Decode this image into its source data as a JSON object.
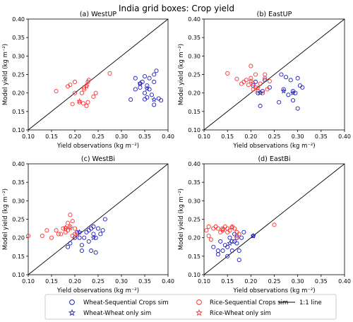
{
  "title": "India grid boxes: Crop yield",
  "legend": {
    "items": [
      {
        "label": "Wheat-Sequential Crops sim",
        "marker": "circle-open",
        "color": "#1f1fbf"
      },
      {
        "label": "Rice-Sequential Crops sim",
        "marker": "circle-open",
        "color": "#ff3333"
      },
      {
        "label": "1:1 line",
        "marker": "line",
        "color": "#000000"
      },
      {
        "label": "Wheat-Wheat only sim",
        "marker": "star-open",
        "color": "#1f1fbf"
      },
      {
        "label": "Rice-Wheat only sim",
        "marker": "star-open",
        "color": "#ff3333"
      }
    ]
  },
  "chart_data": [
    {
      "type": "scatter",
      "title": "(a)  WestUP",
      "xlabel": "Yield observations (kg m⁻²)",
      "ylabel": "Model yield (kg m⁻²)",
      "xlim": [
        0.1,
        0.4
      ],
      "ylim": [
        0.1,
        0.4
      ],
      "xticks": [
        "0.10",
        "0.15",
        "0.20",
        "0.25",
        "0.30",
        "0.35",
        "0.40"
      ],
      "yticks": [
        "0.10",
        "0.15",
        "0.20",
        "0.25",
        "0.30",
        "0.35",
        "0.40"
      ],
      "series": [
        {
          "name": "Wheat-Sequential Crops sim",
          "color": "#1f1fbf",
          "marker": "circle-open",
          "points": [
            [
              0.32,
              0.182
            ],
            [
              0.33,
              0.24
            ],
            [
              0.33,
              0.21
            ],
            [
              0.34,
              0.225
            ],
            [
              0.34,
              0.215
            ],
            [
              0.345,
              0.23
            ],
            [
              0.35,
              0.2
            ],
            [
              0.35,
              0.183
            ],
            [
              0.355,
              0.22
            ],
            [
              0.355,
              0.188
            ],
            [
              0.36,
              0.24
            ],
            [
              0.36,
              0.21
            ],
            [
              0.37,
              0.25
            ],
            [
              0.37,
              0.23
            ],
            [
              0.37,
              0.168
            ],
            [
              0.375,
              0.26
            ],
            [
              0.38,
              0.185
            ],
            [
              0.385,
              0.18
            ],
            [
              0.35,
              0.245
            ],
            [
              0.365,
              0.195
            ]
          ]
        },
        {
          "name": "Rice-Sequential Crops sim",
          "color": "#ff3333",
          "marker": "circle-open",
          "points": [
            [
              0.16,
              0.205
            ],
            [
              0.185,
              0.218
            ],
            [
              0.19,
              0.222
            ],
            [
              0.195,
              0.17
            ],
            [
              0.2,
              0.2
            ],
            [
              0.2,
              0.23
            ],
            [
              0.21,
              0.175
            ],
            [
              0.215,
              0.2
            ],
            [
              0.218,
              0.172
            ],
            [
              0.22,
              0.215
            ],
            [
              0.22,
              0.21
            ],
            [
              0.225,
              0.22
            ],
            [
              0.225,
              0.165
            ],
            [
              0.228,
              0.175
            ],
            [
              0.228,
              0.23
            ],
            [
              0.23,
              0.235
            ],
            [
              0.24,
              0.19
            ],
            [
              0.245,
              0.2
            ],
            [
              0.275,
              0.253
            ]
          ]
        },
        {
          "name": "Wheat-Wheat only sim",
          "color": "#1f1fbf",
          "marker": "star-open",
          "points": [
            [
              0.34,
              0.226
            ],
            [
              0.355,
              0.212
            ],
            [
              0.37,
              0.182
            ]
          ]
        },
        {
          "name": "Rice-Wheat only sim",
          "color": "#ff3333",
          "marker": "star-open",
          "points": [
            [
              0.21,
              0.178
            ],
            [
              0.225,
              0.218
            ]
          ]
        }
      ]
    },
    {
      "type": "scatter",
      "title": "(b)  EastUP",
      "xlabel": "Yield observations (kg m⁻²)",
      "ylabel": "Model yield (kg m⁻²)",
      "xlim": [
        0.1,
        0.4
      ],
      "ylim": [
        0.1,
        0.4
      ],
      "xticks": [
        "0.10",
        "0.15",
        "0.20",
        "0.25",
        "0.30",
        "0.35",
        "0.40"
      ],
      "yticks": [
        "0.10",
        "0.15",
        "0.20",
        "0.25",
        "0.30",
        "0.35",
        "0.40"
      ],
      "series": [
        {
          "name": "Wheat-Sequential Crops sim",
          "color": "#1f1fbf",
          "marker": "circle-open",
          "points": [
            [
              0.205,
              0.22
            ],
            [
              0.21,
              0.23
            ],
            [
              0.215,
              0.2
            ],
            [
              0.22,
              0.165
            ],
            [
              0.225,
              0.205
            ],
            [
              0.23,
              0.235
            ],
            [
              0.24,
              0.215
            ],
            [
              0.26,
              0.175
            ],
            [
              0.265,
              0.25
            ],
            [
              0.27,
              0.21
            ],
            [
              0.275,
              0.243
            ],
            [
              0.28,
              0.195
            ],
            [
              0.285,
              0.235
            ],
            [
              0.29,
              0.18
            ],
            [
              0.29,
              0.205
            ],
            [
              0.295,
              0.2
            ],
            [
              0.3,
              0.24
            ],
            [
              0.3,
              0.158
            ],
            [
              0.305,
              0.22
            ],
            [
              0.31,
              0.215
            ]
          ]
        },
        {
          "name": "Rice-Sequential Crops sim",
          "color": "#ff3333",
          "marker": "circle-open",
          "points": [
            [
              0.15,
              0.253
            ],
            [
              0.17,
              0.238
            ],
            [
              0.18,
              0.225
            ],
            [
              0.185,
              0.23
            ],
            [
              0.19,
              0.235
            ],
            [
              0.195,
              0.222
            ],
            [
              0.2,
              0.273
            ],
            [
              0.2,
              0.24
            ],
            [
              0.205,
              0.21
            ],
            [
              0.205,
              0.225
            ],
            [
              0.21,
              0.215
            ],
            [
              0.21,
              0.25
            ],
            [
              0.215,
              0.205
            ],
            [
              0.22,
              0.225
            ],
            [
              0.225,
              0.2
            ],
            [
              0.23,
              0.24
            ],
            [
              0.23,
              0.25
            ],
            [
              0.235,
              0.21
            ],
            [
              0.24,
              0.232
            ]
          ]
        },
        {
          "name": "Wheat-Wheat only sim",
          "color": "#1f1fbf",
          "marker": "star-open",
          "points": [
            [
              0.22,
              0.2
            ],
            [
              0.27,
              0.205
            ],
            [
              0.29,
              0.2
            ]
          ]
        },
        {
          "name": "Rice-Wheat only sim",
          "color": "#ff3333",
          "marker": "star-open",
          "points": [
            [
              0.2,
              0.232
            ],
            [
              0.215,
              0.213
            ]
          ]
        }
      ]
    },
    {
      "type": "scatter",
      "title": "(c)  WestBi",
      "xlabel": "Yield observations (kg m⁻²)",
      "ylabel": "Model yield (kg m⁻²)",
      "xlim": [
        0.1,
        0.4
      ],
      "ylim": [
        0.1,
        0.4
      ],
      "xticks": [
        "0.10",
        "0.15",
        "0.20",
        "0.25",
        "0.30",
        "0.35",
        "0.40"
      ],
      "yticks": [
        "0.10",
        "0.15",
        "0.20",
        "0.25",
        "0.30",
        "0.35",
        "0.40"
      ],
      "series": [
        {
          "name": "Wheat-Sequential Crops sim",
          "color": "#1f1fbf",
          "marker": "circle-open",
          "points": [
            [
              0.185,
              0.175
            ],
            [
              0.19,
              0.185
            ],
            [
              0.2,
              0.2
            ],
            [
              0.205,
              0.215
            ],
            [
              0.21,
              0.2
            ],
            [
              0.215,
              0.165
            ],
            [
              0.215,
              0.18
            ],
            [
              0.22,
              0.2
            ],
            [
              0.225,
              0.215
            ],
            [
              0.23,
              0.22
            ],
            [
              0.23,
              0.19
            ],
            [
              0.235,
              0.225
            ],
            [
              0.235,
              0.165
            ],
            [
              0.24,
              0.21
            ],
            [
              0.24,
              0.23
            ],
            [
              0.245,
              0.2
            ],
            [
              0.245,
              0.16
            ],
            [
              0.25,
              0.225
            ],
            [
              0.255,
              0.21
            ],
            [
              0.26,
              0.22
            ],
            [
              0.265,
              0.25
            ]
          ]
        },
        {
          "name": "Rice-Sequential Crops sim",
          "color": "#ff3333",
          "marker": "circle-open",
          "points": [
            [
              0.1,
              0.205
            ],
            [
              0.13,
              0.205
            ],
            [
              0.14,
              0.22
            ],
            [
              0.15,
              0.2
            ],
            [
              0.16,
              0.22
            ],
            [
              0.165,
              0.21
            ],
            [
              0.17,
              0.21
            ],
            [
              0.175,
              0.225
            ],
            [
              0.18,
              0.215
            ],
            [
              0.18,
              0.225
            ],
            [
              0.185,
              0.24
            ],
            [
              0.185,
              0.22
            ],
            [
              0.19,
              0.262
            ],
            [
              0.19,
              0.23
            ],
            [
              0.195,
              0.205
            ],
            [
              0.195,
              0.245
            ],
            [
              0.2,
              0.225
            ],
            [
              0.2,
              0.21
            ],
            [
              0.205,
              0.21
            ]
          ]
        },
        {
          "name": "Wheat-Wheat only sim",
          "color": "#1f1fbf",
          "marker": "star-open",
          "points": [
            [
              0.21,
              0.215
            ],
            [
              0.24,
              0.2
            ]
          ]
        },
        {
          "name": "Rice-Wheat only sim",
          "color": "#ff3333",
          "marker": "star-open",
          "points": [
            [
              0.18,
              0.228
            ],
            [
              0.19,
              0.226
            ]
          ]
        }
      ]
    },
    {
      "type": "scatter",
      "title": "(d)  EastBi",
      "xlabel": "Yield observations (kg m⁻²)",
      "ylabel": "Model yield (kg m⁻²)",
      "xlim": [
        0.1,
        0.4
      ],
      "ylim": [
        0.1,
        0.4
      ],
      "xticks": [
        "0.10",
        "0.15",
        "0.20",
        "0.25",
        "0.30",
        "0.35",
        "0.40"
      ],
      "yticks": [
        "0.10",
        "0.15",
        "0.20",
        "0.25",
        "0.30",
        "0.35",
        "0.40"
      ],
      "series": [
        {
          "name": "Wheat-Sequential Crops sim",
          "color": "#1f1fbf",
          "marker": "circle-open",
          "points": [
            [
              0.12,
              0.175
            ],
            [
              0.13,
              0.155
            ],
            [
              0.13,
              0.165
            ],
            [
              0.135,
              0.19
            ],
            [
              0.14,
              0.165
            ],
            [
              0.145,
              0.18
            ],
            [
              0.15,
              0.15
            ],
            [
              0.15,
              0.175
            ],
            [
              0.155,
              0.2
            ],
            [
              0.16,
              0.19
            ],
            [
              0.16,
              0.165
            ],
            [
              0.165,
              0.19
            ],
            [
              0.165,
              0.21
            ],
            [
              0.17,
              0.185
            ],
            [
              0.17,
              0.2
            ],
            [
              0.175,
              0.14
            ],
            [
              0.175,
              0.165
            ],
            [
              0.18,
              0.2
            ],
            [
              0.185,
              0.215
            ],
            [
              0.205,
              0.205
            ]
          ]
        },
        {
          "name": "Rice-Sequential Crops sim",
          "color": "#ff3333",
          "marker": "circle-open",
          "points": [
            [
              0.105,
              0.22
            ],
            [
              0.11,
              0.23
            ],
            [
              0.11,
              0.205
            ],
            [
              0.115,
              0.195
            ],
            [
              0.12,
              0.225
            ],
            [
              0.125,
              0.23
            ],
            [
              0.13,
              0.225
            ],
            [
              0.135,
              0.215
            ],
            [
              0.14,
              0.225
            ],
            [
              0.14,
              0.22
            ],
            [
              0.145,
              0.23
            ],
            [
              0.15,
              0.225
            ],
            [
              0.15,
              0.215
            ],
            [
              0.155,
              0.22
            ],
            [
              0.16,
              0.23
            ],
            [
              0.165,
              0.225
            ],
            [
              0.17,
              0.215
            ],
            [
              0.17,
              0.205
            ],
            [
              0.175,
              0.21
            ],
            [
              0.25,
              0.235
            ]
          ]
        },
        {
          "name": "Wheat-Wheat only sim",
          "color": "#1f1fbf",
          "marker": "star-open",
          "points": [
            [
              0.155,
              0.185
            ],
            [
              0.205,
              0.205
            ]
          ]
        },
        {
          "name": "Rice-Wheat only sim",
          "color": "#ff3333",
          "marker": "star-open",
          "points": [
            [
              0.14,
              0.222
            ],
            [
              0.16,
              0.228
            ]
          ]
        }
      ]
    }
  ]
}
